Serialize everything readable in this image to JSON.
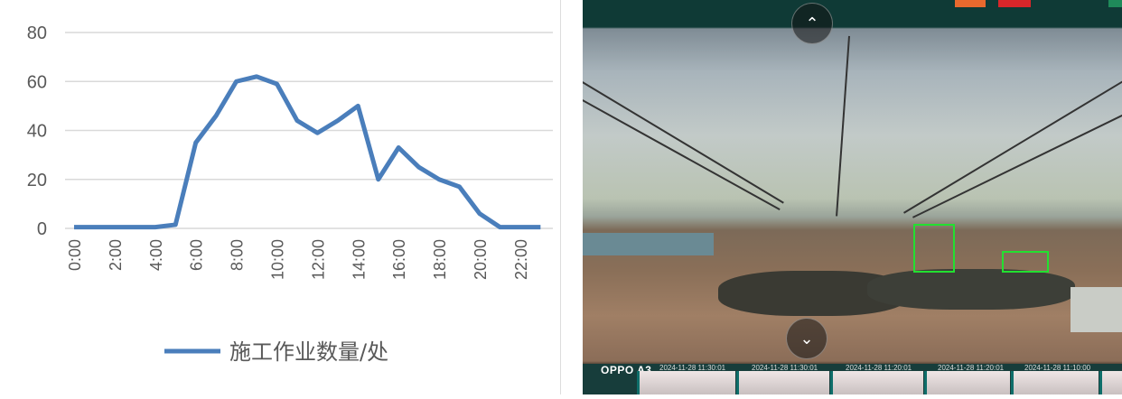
{
  "chart_data": {
    "type": "line",
    "categories": [
      "0:00",
      "1:00",
      "2:00",
      "3:00",
      "4:00",
      "5:00",
      "6:00",
      "7:00",
      "8:00",
      "9:00",
      "10:00",
      "11:00",
      "12:00",
      "13:00",
      "14:00",
      "15:00",
      "16:00",
      "17:00",
      "18:00",
      "19:00",
      "20:00",
      "21:00",
      "22:00",
      "23:00"
    ],
    "tick_labels": [
      "0:00",
      "2:00",
      "4:00",
      "6:00",
      "8:00",
      "10:00",
      "12:00",
      "14:00",
      "16:00",
      "18:00",
      "20:00",
      "22:00"
    ],
    "series": [
      {
        "name": "施工作业数量/处",
        "color": "#4a7ebb",
        "values": [
          0.5,
          0.5,
          0.5,
          0.5,
          0.5,
          1.5,
          35,
          46,
          60,
          62,
          59,
          44,
          39,
          44,
          50,
          20,
          33,
          25,
          20,
          17,
          6,
          0.5,
          0.5,
          0.5
        ]
      }
    ],
    "ylim": [
      0,
      80
    ],
    "yticks": [
      0,
      20,
      40,
      60,
      80
    ],
    "grid": true,
    "legend_placement": "bottom"
  },
  "photo": {
    "watermark": "OPPO A3",
    "timestamps": [
      "2024-11-28 11:30:01",
      "2024-11-28 11:30:01",
      "2024-11-28 11:20:01",
      "2024-11-28 11:20:01",
      "2024-11-28 11:10:00"
    ],
    "nav_up_icon": "chevron-up-icon",
    "nav_down_icon": "chevron-down-icon",
    "detection_color": "#22e030"
  }
}
